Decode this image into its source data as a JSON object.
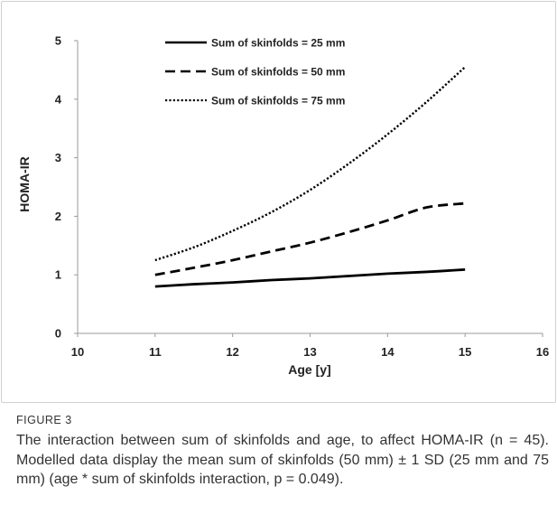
{
  "figure": {
    "label": "FIGURE 3",
    "caption": "The interaction between sum of skinfolds and age, to affect HOMA-IR (n = 45). Modelled data display the mean sum of skinfolds (50 mm) ± 1 SD (25 mm and 75 mm) (age * sum of skinfolds interaction, p = 0.049)."
  },
  "chart_data": {
    "type": "line",
    "title": "",
    "xlabel": "Age [y]",
    "ylabel": "HOMA-IR",
    "xlim": [
      10,
      16
    ],
    "ylim": [
      0,
      5
    ],
    "x_ticks": [
      "10",
      "11",
      "12",
      "13",
      "14",
      "15",
      "16"
    ],
    "y_ticks": [
      "0",
      "1",
      "2",
      "3",
      "4",
      "5"
    ],
    "grid": false,
    "legend_position": "top-center",
    "x": [
      11,
      11.5,
      12,
      12.5,
      13,
      13.5,
      14,
      14.5,
      15
    ],
    "series": [
      {
        "name": "Sum of skinfolds = 25 mm",
        "style": "solid",
        "values": [
          0.8,
          0.84,
          0.87,
          0.91,
          0.94,
          0.98,
          1.02,
          1.05,
          1.09
        ]
      },
      {
        "name": "Sum of skinfolds = 50 mm",
        "style": "dashed",
        "values": [
          1.0,
          1.12,
          1.25,
          1.4,
          1.55,
          1.73,
          1.93,
          2.15,
          2.22
        ]
      },
      {
        "name": "Sum of skinfolds = 75 mm",
        "style": "dotted",
        "values": [
          1.25,
          1.47,
          1.75,
          2.07,
          2.45,
          2.9,
          3.4,
          3.95,
          4.55
        ]
      }
    ],
    "line_color": "#000000"
  }
}
